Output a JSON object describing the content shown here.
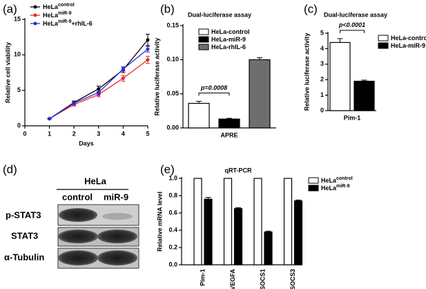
{
  "chart_data": [
    {
      "type": "line",
      "label": "(a)",
      "x_label": "Days",
      "y_label": "Relative cell viability",
      "x": [
        1,
        2,
        3,
        4,
        5
      ],
      "xlim": [
        0,
        5
      ],
      "xticks": [
        0,
        1,
        2,
        3,
        4,
        5
      ],
      "ylim": [
        0,
        15
      ],
      "yticks": [
        0,
        5,
        10,
        15
      ],
      "series": [
        {
          "name": "HeLa",
          "name_sup": "control",
          "color": "#000000",
          "values": [
            1.0,
            3.3,
            5.2,
            7.9,
            12.1
          ],
          "errors": [
            0.05,
            0.2,
            0.4,
            0.4,
            0.8
          ]
        },
        {
          "name": "HeLa",
          "name_sup": "miR-9",
          "color": "#e8262b",
          "values": [
            1.0,
            3.0,
            4.4,
            6.7,
            9.3
          ],
          "errors": [
            0.05,
            0.2,
            0.3,
            0.4,
            0.5
          ]
        },
        {
          "name": "HeLa",
          "name_sup": "miR-9",
          "name_after": "+rhIL-6",
          "color": "#2b2bd6",
          "values": [
            1.0,
            3.2,
            4.7,
            8.0,
            10.8
          ],
          "errors": [
            0.05,
            0.2,
            0.3,
            0.3,
            0.4
          ]
        }
      ]
    },
    {
      "type": "bar",
      "label": "(b)",
      "title": "Dual-luciferase assay",
      "y_label": "Relative luciferase activity",
      "categories": [
        "APRE"
      ],
      "ylim": [
        0,
        0.15
      ],
      "yticks": [
        {
          "value": 0,
          "label": "0.00"
        },
        {
          "value": 0.05,
          "label": "0.05"
        },
        {
          "value": 0.1,
          "label": "0.10"
        },
        {
          "value": 0.15,
          "label": "0.15"
        }
      ],
      "annotation": "p=0.0008",
      "series": [
        {
          "name": "HeLa-control",
          "color": "#ffffff",
          "values": [
            0.036
          ],
          "errors": [
            0.003
          ]
        },
        {
          "name": "HeLa-miR-9",
          "color": "#000000",
          "values": [
            0.013
          ],
          "errors": [
            0.001
          ]
        },
        {
          "name": "HeLa-rhIL-6",
          "color": "#6e6e6e",
          "values": [
            0.1
          ],
          "errors": [
            0.003
          ]
        }
      ]
    },
    {
      "type": "bar",
      "label": "(c)",
      "title": "Dual-luciferase assay",
      "y_label": "Relative luciferase activity",
      "categories": [
        "Pim-1"
      ],
      "ylim": [
        0,
        5
      ],
      "yticks": [
        0,
        1,
        2,
        3,
        4,
        5
      ],
      "annotation": "p<0.0001",
      "series": [
        {
          "name": "HeLa-control",
          "color": "#ffffff",
          "values": [
            4.4
          ],
          "errors": [
            0.25
          ]
        },
        {
          "name": "HeLa-miR-9",
          "color": "#000000",
          "values": [
            1.9
          ],
          "errors": [
            0.07
          ]
        }
      ]
    },
    {
      "type": "bar",
      "label": "(e)",
      "title": "qRT-PCR",
      "y_label": "Relative mRNA level",
      "categories": [
        "Pim-1",
        "VEGFA",
        "SOCS1",
        "SOCS3"
      ],
      "ylim": [
        0,
        1.0
      ],
      "yticks": [
        {
          "value": 0,
          "label": "0.0"
        },
        {
          "value": 0.2,
          "label": "0.2"
        },
        {
          "value": 0.4,
          "label": "0.4"
        },
        {
          "value": 0.6,
          "label": "0.6"
        },
        {
          "value": 0.8,
          "label": "0.8"
        },
        {
          "value": 1.0,
          "label": "1.0"
        }
      ],
      "rotate_categories": true,
      "series": [
        {
          "name": "HeLa",
          "name_sup": "control",
          "color": "#ffffff",
          "values": [
            1,
            1,
            1,
            1
          ]
        },
        {
          "name": "HeLa",
          "name_sup": "miR-9",
          "color": "#000000",
          "values": [
            0.76,
            0.65,
            0.38,
            0.74
          ],
          "errors": [
            0.02,
            0.01,
            0.01,
            0.01
          ]
        }
      ]
    }
  ],
  "blot": {
    "label": "(d)",
    "cell_line": "HeLa",
    "lanes": [
      "control",
      "miR-9"
    ],
    "rows": [
      "p-STAT3",
      "STAT3",
      "α-Tubulin"
    ]
  }
}
